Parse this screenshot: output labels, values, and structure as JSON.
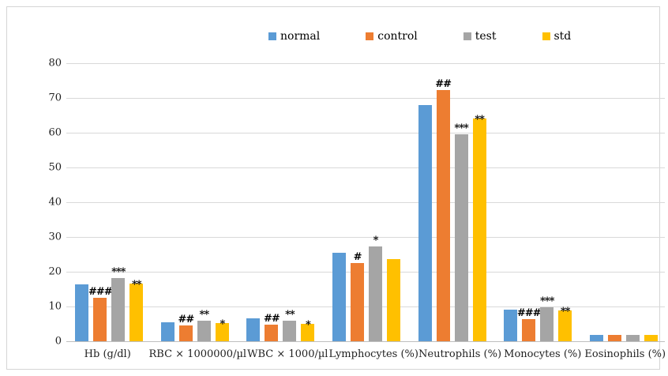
{
  "chart_data": {
    "type": "bar",
    "title": "",
    "xlabel": "",
    "ylabel": "",
    "categories": [
      "Hb (g/dl)",
      "RBC × 1000000/µl",
      "WBC × 1000/µl",
      "Lymphocytes (%)",
      "Neutrophils (%)",
      "Monocytes (%)",
      "Eosinophils (%)"
    ],
    "series": [
      {
        "name": "normal",
        "color": "#5B9BD5",
        "values": [
          16.4,
          5.4,
          6.5,
          25.5,
          68.0,
          9.2,
          1.8
        ],
        "marks": [
          "",
          "",
          "",
          "",
          "",
          "",
          ""
        ]
      },
      {
        "name": "control",
        "color": "#ED7D31",
        "values": [
          12.4,
          4.6,
          4.7,
          22.5,
          72.3,
          6.3,
          1.8
        ],
        "marks": [
          "###",
          "##",
          "##",
          "#",
          "##",
          "###",
          ""
        ]
      },
      {
        "name": "test",
        "color": "#A5A5A5",
        "values": [
          18.2,
          5.8,
          5.9,
          27.3,
          59.6,
          9.7,
          1.8
        ],
        "marks": [
          "***",
          "**",
          "**",
          "*",
          "***",
          "***",
          ""
        ]
      },
      {
        "name": "std",
        "color": "#FFC000",
        "values": [
          16.5,
          5.2,
          5.0,
          23.6,
          64.1,
          8.8,
          1.8
        ],
        "marks": [
          "**",
          "*",
          "*",
          "",
          "**",
          "**",
          ""
        ]
      }
    ],
    "ylim": [
      0,
      80
    ],
    "yticks": [
      0,
      10,
      20,
      30,
      40,
      50,
      60,
      70,
      80
    ],
    "grid": true,
    "legend_position": "top"
  },
  "colors": {
    "gridline": "#D9D9D9",
    "axis_line": "#BFBFBF",
    "frame_border": "#D5D5D5",
    "text": "#1F1F1F"
  }
}
